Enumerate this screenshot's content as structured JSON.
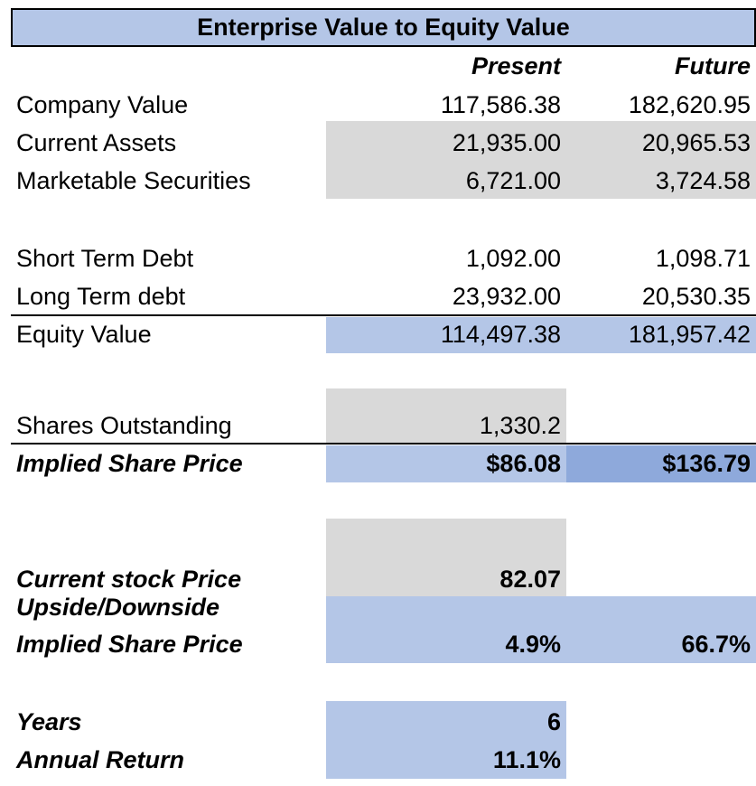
{
  "title": "Enterprise Value to Equity Value",
  "columns": {
    "present": "Present",
    "future": "Future"
  },
  "rows": {
    "company_value": {
      "label": "Company Value",
      "present": "117,586.38",
      "future": "182,620.95"
    },
    "current_assets": {
      "label": "Current Assets",
      "present": "21,935.00",
      "future": "20,965.53"
    },
    "marketable_securities": {
      "label": "Marketable Securities",
      "present": "6,721.00",
      "future": "3,724.58"
    },
    "short_term_debt": {
      "label": "Short Term Debt",
      "present": "1,092.00",
      "future": "1,098.71"
    },
    "long_term_debt": {
      "label": "Long Term debt",
      "present": "23,932.00",
      "future": "20,530.35"
    },
    "equity_value": {
      "label": "Equity Value",
      "present": "114,497.38",
      "future": "181,957.42"
    },
    "shares_outstanding": {
      "label": "Shares Outstanding",
      "present": "1,330.2"
    },
    "implied_share_price": {
      "label": "Implied Share Price",
      "present": "$86.08",
      "future": "$136.79"
    },
    "current_stock_price": {
      "label": "Current stock Price",
      "present": "82.07"
    },
    "upside_downside": {
      "label_line1": "Upside/Downside",
      "label_line2": "Implied Share Price",
      "present": "4.9%",
      "future": "66.7%"
    },
    "years": {
      "label": "Years",
      "present": "6"
    },
    "annual_return": {
      "label": "Annual Return",
      "present": "11.1%"
    }
  },
  "colors": {
    "blue": "#b4c6e7",
    "blue_dark": "#8ea9db",
    "gray": "#d9d9d9"
  }
}
